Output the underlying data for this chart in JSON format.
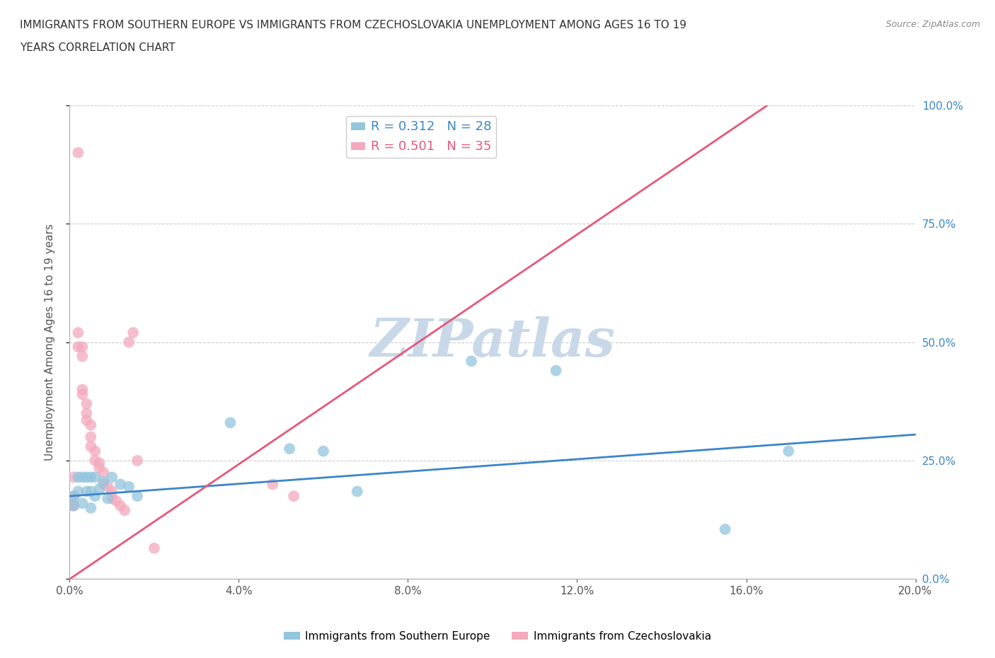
{
  "title_line1": "IMMIGRANTS FROM SOUTHERN EUROPE VS IMMIGRANTS FROM CZECHOSLOVAKIA UNEMPLOYMENT AMONG AGES 16 TO 19",
  "title_line2": "YEARS CORRELATION CHART",
  "source": "Source: ZipAtlas.com",
  "ylabel": "Unemployment Among Ages 16 to 19 years",
  "xlim": [
    0.0,
    0.2
  ],
  "ylim": [
    0.0,
    1.0
  ],
  "xticks": [
    0.0,
    0.04,
    0.08,
    0.12,
    0.16,
    0.2
  ],
  "yticks": [
    0.0,
    0.25,
    0.5,
    0.75,
    1.0
  ],
  "xtick_labels": [
    "0.0%",
    "4.0%",
    "8.0%",
    "12.0%",
    "16.0%",
    "20.0%"
  ],
  "ytick_labels": [
    "0.0%",
    "25.0%",
    "50.0%",
    "75.0%",
    "100.0%"
  ],
  "blue_color": "#92c5de",
  "pink_color": "#f4a9bc",
  "blue_line_color": "#3a86c8",
  "pink_line_color": "#e8567a",
  "legend_r_blue": "R = 0.312",
  "legend_n_blue": "N = 28",
  "legend_r_pink": "R = 0.501",
  "legend_n_pink": "N = 35",
  "blue_scatter_x": [
    0.001,
    0.001,
    0.002,
    0.002,
    0.003,
    0.003,
    0.004,
    0.004,
    0.005,
    0.005,
    0.005,
    0.006,
    0.006,
    0.007,
    0.008,
    0.009,
    0.01,
    0.012,
    0.014,
    0.016,
    0.038,
    0.052,
    0.06,
    0.068,
    0.095,
    0.115,
    0.155,
    0.17
  ],
  "blue_scatter_y": [
    0.155,
    0.175,
    0.185,
    0.215,
    0.16,
    0.215,
    0.185,
    0.215,
    0.15,
    0.185,
    0.215,
    0.175,
    0.215,
    0.19,
    0.205,
    0.17,
    0.215,
    0.2,
    0.195,
    0.175,
    0.33,
    0.275,
    0.27,
    0.185,
    0.46,
    0.44,
    0.105,
    0.27
  ],
  "pink_scatter_x": [
    0.0005,
    0.001,
    0.001,
    0.001,
    0.002,
    0.002,
    0.002,
    0.003,
    0.003,
    0.003,
    0.003,
    0.004,
    0.004,
    0.004,
    0.005,
    0.005,
    0.005,
    0.006,
    0.006,
    0.007,
    0.007,
    0.008,
    0.008,
    0.009,
    0.01,
    0.01,
    0.011,
    0.012,
    0.013,
    0.014,
    0.015,
    0.016,
    0.02,
    0.048,
    0.053
  ],
  "pink_scatter_y": [
    0.155,
    0.155,
    0.175,
    0.215,
    0.9,
    0.52,
    0.49,
    0.49,
    0.47,
    0.4,
    0.39,
    0.37,
    0.35,
    0.335,
    0.325,
    0.3,
    0.28,
    0.27,
    0.25,
    0.245,
    0.235,
    0.225,
    0.2,
    0.195,
    0.185,
    0.17,
    0.165,
    0.155,
    0.145,
    0.5,
    0.52,
    0.25,
    0.065,
    0.2,
    0.175
  ],
  "pink_trend_x0": 0.0,
  "pink_trend_y0": 0.0,
  "pink_trend_x1": 0.165,
  "pink_trend_y1": 1.0,
  "blue_trend_x0": 0.0,
  "blue_trend_y0": 0.175,
  "blue_trend_x1": 0.2,
  "blue_trend_y1": 0.305,
  "watermark": "ZIPatlas",
  "watermark_color": "#c8d8e8",
  "background_color": "#ffffff",
  "grid_color": "#cccccc"
}
